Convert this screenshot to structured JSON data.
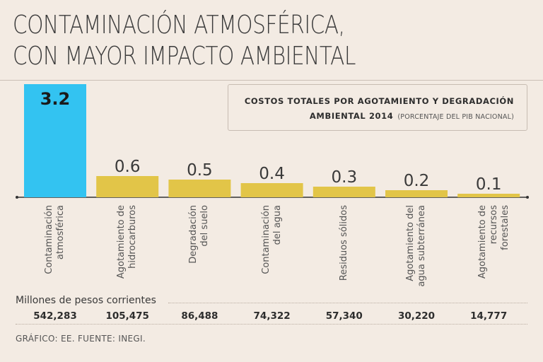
{
  "header": {
    "title_line1": "CONTAMINACIÓN ATMOSFÉRICA,",
    "title_line2": "CON MAYOR IMPACTO AMBIENTAL"
  },
  "legend": {
    "line1": "COSTOS TOTALES POR AGOTAMIENTO Y DEGRADACIÓN",
    "line2": "AMBIENTAL 2014",
    "note": "(PORCENTAJE DEL PIB NACIONAL)"
  },
  "chart_data": {
    "type": "bar",
    "title": "COSTOS TOTALES POR AGOTAMIENTO Y DEGRADACIÓN AMBIENTAL 2014",
    "ylabel": "(PORCENTAJE DEL PIB NACIONAL)",
    "categories": [
      "Contaminación atmosférica",
      "Agotamiento de hidrocarburos",
      "Degradación del suelo",
      "Contaminación del agua",
      "Residuos sólidos",
      "Agotamiento del agua subterránea",
      "Agotamiento de recursos forestales"
    ],
    "category_lines": [
      [
        "Contaminación",
        "atmosférica"
      ],
      [
        "Agotamiento de",
        "hidrocarburos"
      ],
      [
        "Degradación",
        "del suelo"
      ],
      [
        "Contaminación",
        "del agua"
      ],
      [
        "Residuos sólidos"
      ],
      [
        "Agotamiento del",
        "agua subterránea"
      ],
      [
        "Agotamiento de",
        "recursos forestales"
      ]
    ],
    "values": [
      3.2,
      0.6,
      0.5,
      0.4,
      0.3,
      0.2,
      0.1
    ],
    "value_labels": [
      "3.2",
      "0.6",
      "0.5",
      "0.4",
      "0.3",
      "0.2",
      "0.1"
    ],
    "highlight_index": 0,
    "colors": {
      "highlight": "#33c3f1",
      "default": "#e2c548",
      "axis": "#333333"
    },
    "grid": false
  },
  "amounts": {
    "label": "Millones de pesos corrientes",
    "values": [
      "542,283",
      "105,475",
      "86,488",
      "74,322",
      "57,340",
      "30,220",
      "14,777"
    ]
  },
  "footer": {
    "source": "GRÁFICO: EE. FUENTE: INEGI."
  }
}
